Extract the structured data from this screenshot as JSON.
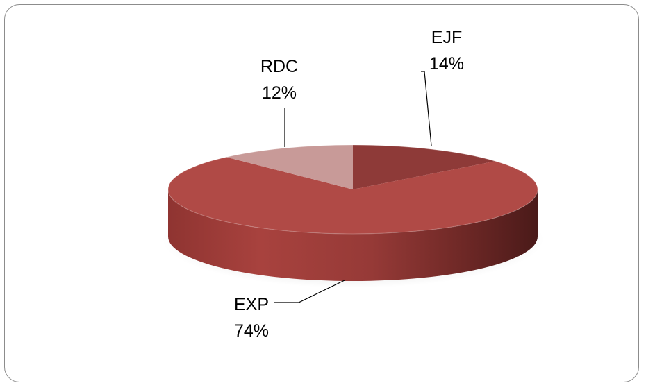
{
  "chart_data": {
    "type": "pie",
    "style": "3d",
    "slices": [
      {
        "label": "EJF",
        "percent": "14%",
        "value": 14,
        "color": "#8e3a38"
      },
      {
        "label": "EXP",
        "percent": "74%",
        "value": 74,
        "color": "#b04a46"
      },
      {
        "label": "RDC",
        "percent": "12%",
        "value": 12,
        "color": "#c89a98"
      }
    ],
    "legend": "none"
  }
}
